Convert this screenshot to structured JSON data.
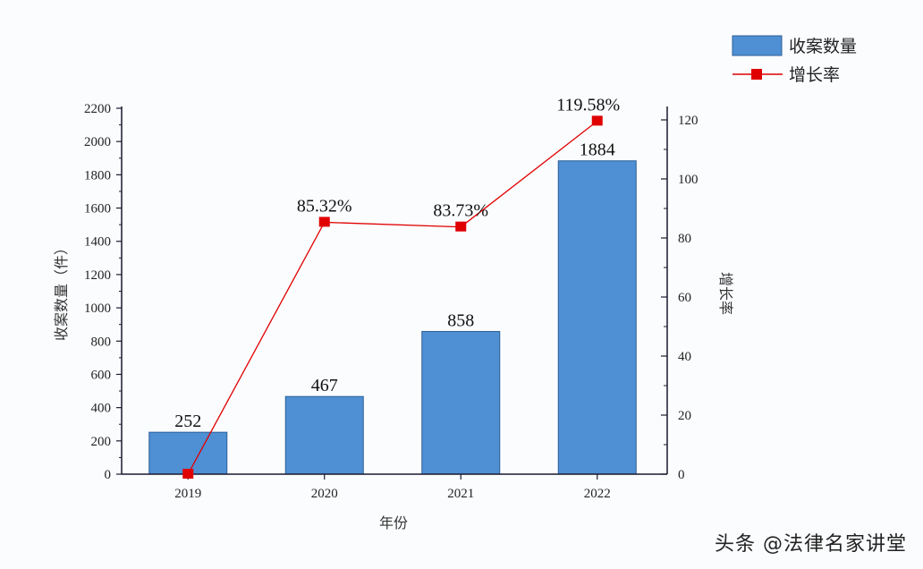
{
  "chart_data": {
    "type": "bar+line",
    "title": "",
    "categories": [
      "2019",
      "2020",
      "2021",
      "2022"
    ],
    "series": [
      {
        "name": "收案数量",
        "type": "bar",
        "axis": "left",
        "values": [
          252,
          467,
          858,
          1884
        ],
        "color": "#4f8fd4",
        "labels": [
          "252",
          "467",
          "858",
          "1884"
        ]
      },
      {
        "name": "增长率",
        "type": "line",
        "axis": "right",
        "values": [
          0,
          85.32,
          83.73,
          119.58
        ],
        "color": "#e00000",
        "labels": [
          "",
          "85.32%",
          "83.73%",
          "119.58%"
        ]
      }
    ],
    "xlabel": "年份",
    "ylabel": "收案数量（件）",
    "y2label": "增长率",
    "ylim": [
      0,
      2200
    ],
    "y2lim": [
      0,
      120
    ],
    "yticks": [
      "0",
      "200",
      "400",
      "600",
      "800",
      "1000",
      "1200",
      "1400",
      "1600",
      "1800",
      "2000",
      "2200"
    ],
    "y2ticks": [
      "0",
      "20",
      "40",
      "60",
      "80",
      "100",
      "120"
    ],
    "grid": false,
    "legend_position": "top-right"
  },
  "legend": {
    "bar_label": "收案数量",
    "line_label": "增长率"
  },
  "watermark": "头条 @法律名家讲堂",
  "colors": {
    "bar": "#4f8fd4",
    "bar_edge": "#2d5f96",
    "line": "#e00000",
    "axis": "#1a1a2e"
  }
}
